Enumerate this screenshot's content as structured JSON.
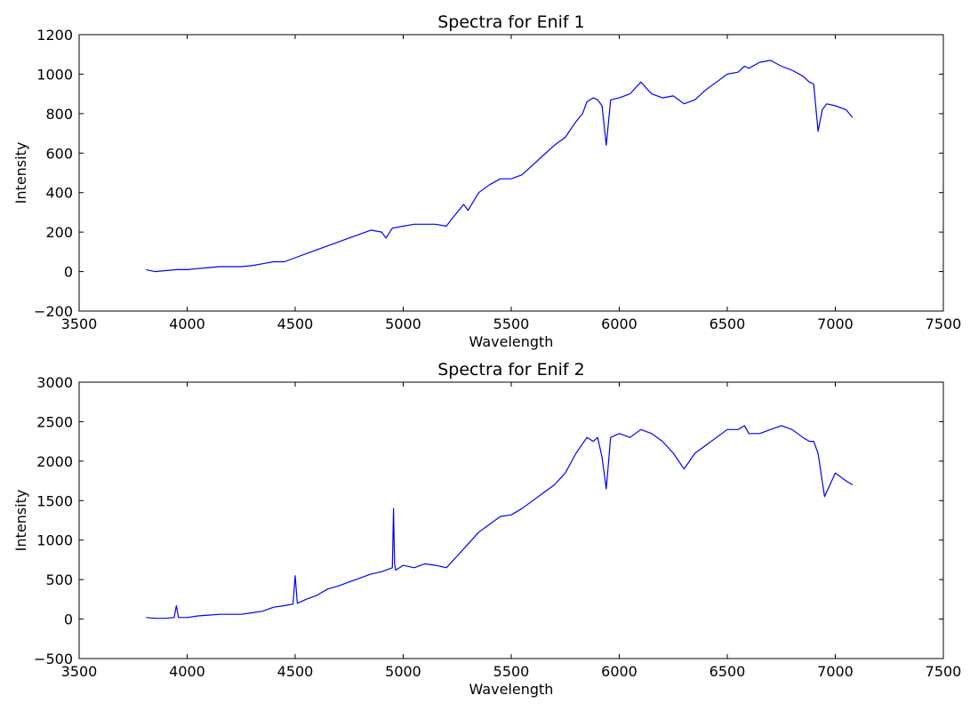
{
  "chart_data": [
    {
      "type": "line",
      "title": "Spectra for Enif 1",
      "xlabel": "Wavelength",
      "ylabel": "Intensity",
      "xlim": [
        3500,
        7500
      ],
      "ylim": [
        -200,
        1200
      ],
      "xticks": [
        3500,
        4000,
        4500,
        5000,
        5500,
        6000,
        6500,
        7000,
        7500
      ],
      "yticks": [
        -200,
        0,
        200,
        400,
        600,
        800,
        1000,
        1200
      ],
      "grid": false,
      "series": [
        {
          "color": "#0000ff",
          "x": [
            3810,
            3850,
            3900,
            3950,
            4000,
            4050,
            4100,
            4150,
            4200,
            4250,
            4300,
            4350,
            4400,
            4450,
            4500,
            4550,
            4600,
            4650,
            4700,
            4750,
            4800,
            4850,
            4900,
            4920,
            4950,
            5000,
            5050,
            5100,
            5150,
            5200,
            5220,
            5250,
            5280,
            5300,
            5350,
            5400,
            5450,
            5500,
            5550,
            5600,
            5650,
            5700,
            5750,
            5800,
            5830,
            5850,
            5880,
            5900,
            5920,
            5940,
            5960,
            6000,
            6050,
            6100,
            6150,
            6200,
            6250,
            6300,
            6350,
            6400,
            6450,
            6500,
            6550,
            6580,
            6600,
            6650,
            6700,
            6750,
            6800,
            6850,
            6880,
            6900,
            6920,
            6940,
            6960,
            7000,
            7050,
            7080
          ],
          "y": [
            10,
            0,
            5,
            10,
            10,
            15,
            20,
            25,
            25,
            25,
            30,
            40,
            50,
            50,
            70,
            90,
            110,
            130,
            150,
            170,
            190,
            210,
            200,
            170,
            220,
            230,
            240,
            240,
            240,
            230,
            260,
            300,
            340,
            310,
            400,
            440,
            470,
            470,
            490,
            540,
            590,
            640,
            680,
            760,
            800,
            860,
            880,
            870,
            840,
            640,
            870,
            880,
            900,
            960,
            900,
            880,
            890,
            850,
            870,
            920,
            960,
            1000,
            1010,
            1040,
            1030,
            1060,
            1070,
            1040,
            1020,
            990,
            960,
            950,
            710,
            820,
            850,
            840,
            820,
            780
          ]
        }
      ]
    },
    {
      "type": "line",
      "title": "Spectra for Enif 2",
      "xlabel": "Wavelength",
      "ylabel": "Intensity",
      "xlim": [
        3500,
        7500
      ],
      "ylim": [
        -500,
        3000
      ],
      "xticks": [
        3500,
        4000,
        4500,
        5000,
        5500,
        6000,
        6500,
        7000,
        7500
      ],
      "yticks": [
        -500,
        0,
        500,
        1000,
        1500,
        2000,
        2500,
        3000
      ],
      "grid": false,
      "series": [
        {
          "color": "#0000ff",
          "x": [
            3810,
            3850,
            3900,
            3940,
            3950,
            3960,
            4000,
            4050,
            4100,
            4150,
            4200,
            4250,
            4300,
            4350,
            4400,
            4450,
            4490,
            4500,
            4510,
            4550,
            4600,
            4650,
            4700,
            4750,
            4800,
            4850,
            4900,
            4950,
            4955,
            4960,
            4965,
            5000,
            5050,
            5100,
            5150,
            5200,
            5250,
            5300,
            5350,
            5400,
            5450,
            5500,
            5550,
            5600,
            5650,
            5700,
            5750,
            5800,
            5850,
            5880,
            5900,
            5920,
            5940,
            5960,
            6000,
            6050,
            6100,
            6150,
            6200,
            6250,
            6300,
            6350,
            6400,
            6450,
            6500,
            6550,
            6580,
            6600,
            6650,
            6700,
            6750,
            6800,
            6850,
            6880,
            6900,
            6920,
            6950,
            7000,
            7050,
            7080
          ],
          "y": [
            20,
            10,
            10,
            20,
            170,
            20,
            20,
            40,
            50,
            60,
            60,
            60,
            80,
            100,
            150,
            170,
            190,
            550,
            200,
            250,
            300,
            380,
            420,
            470,
            520,
            570,
            600,
            650,
            1400,
            700,
            620,
            680,
            650,
            700,
            680,
            650,
            800,
            950,
            1100,
            1200,
            1300,
            1320,
            1400,
            1500,
            1600,
            1700,
            1850,
            2100,
            2300,
            2250,
            2300,
            2050,
            1650,
            2300,
            2350,
            2300,
            2400,
            2350,
            2250,
            2100,
            1900,
            2100,
            2200,
            2300,
            2400,
            2400,
            2450,
            2350,
            2350,
            2400,
            2450,
            2400,
            2300,
            2250,
            2250,
            2100,
            1550,
            1850,
            1750,
            1700
          ]
        }
      ]
    }
  ]
}
